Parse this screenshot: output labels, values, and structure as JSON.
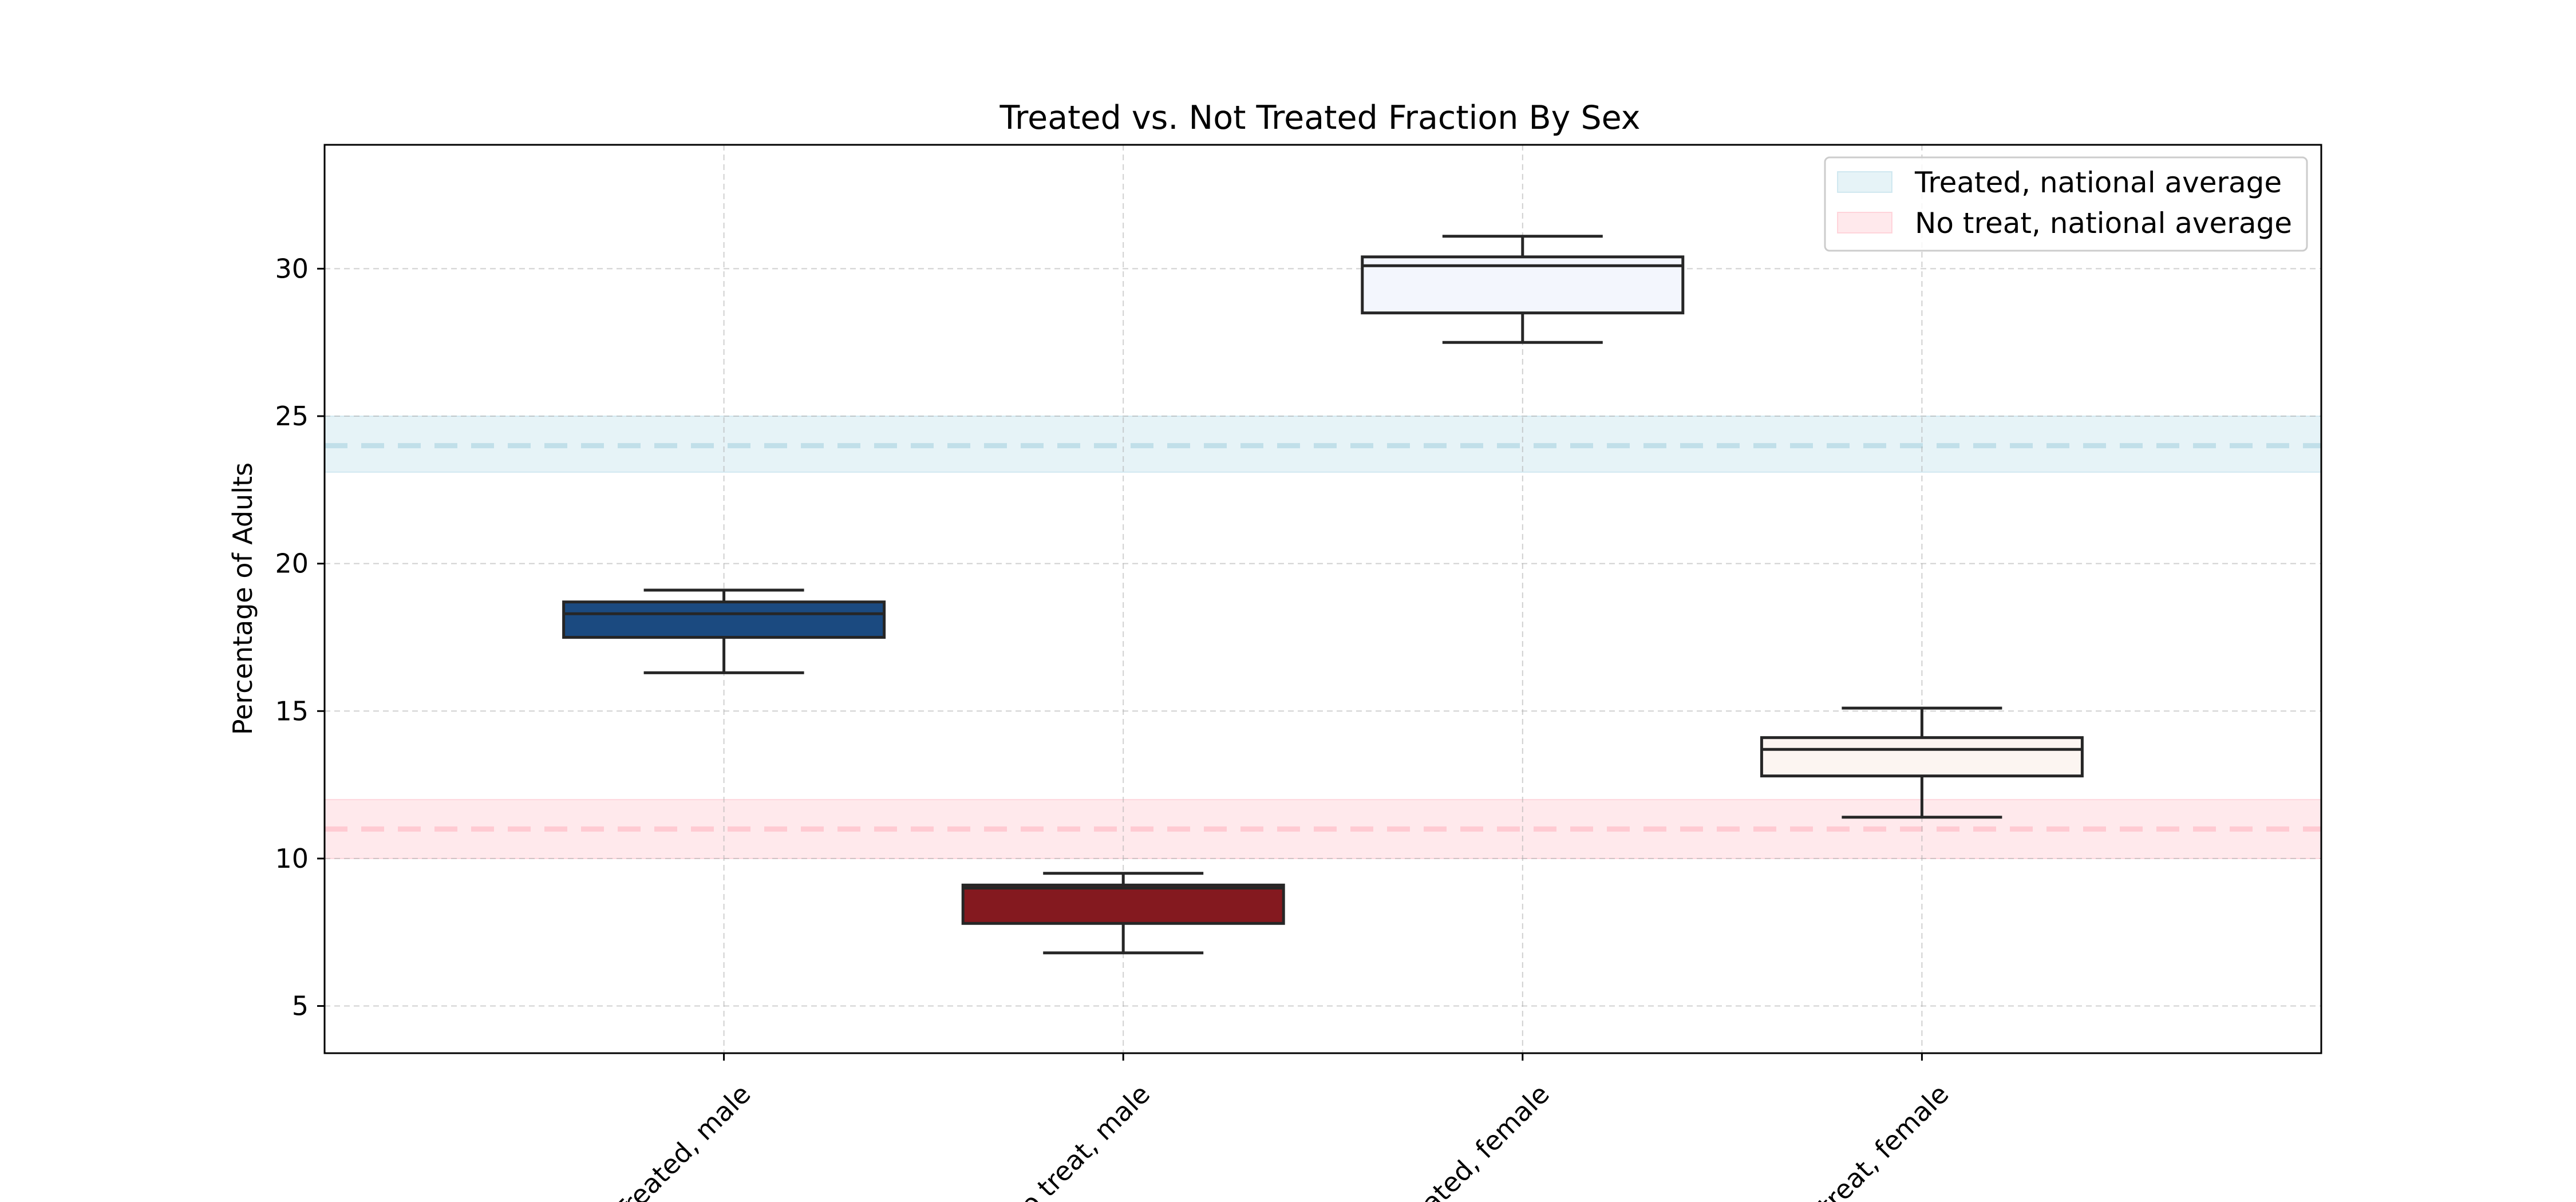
{
  "chart_data": {
    "type": "box",
    "title": "Treated vs. Not Treated Fraction By Sex",
    "xlabel": "",
    "ylabel": "Percentage of Adults",
    "ylim": [
      3.4,
      34.2
    ],
    "yticks": [
      5,
      10,
      15,
      20,
      25,
      30
    ],
    "grid": true,
    "legend_position": "top-right",
    "categories": [
      "Treated, male",
      "No treat, male",
      "Treated, female",
      "No treat, female"
    ],
    "boxes": [
      {
        "category": "Treated, male",
        "whisker_low": 16.3,
        "q1": 17.5,
        "median": 18.3,
        "q3": 18.7,
        "whisker_high": 19.1,
        "color": "#1b4a80"
      },
      {
        "category": "No treat, male",
        "whisker_low": 6.8,
        "q1": 7.8,
        "median": 9.0,
        "q3": 9.1,
        "whisker_high": 9.5,
        "color": "#84191f"
      },
      {
        "category": "Treated, female",
        "whisker_low": 27.5,
        "q1": 28.5,
        "median": 30.1,
        "q3": 30.4,
        "whisker_high": 31.1,
        "color": "#f3f6fd"
      },
      {
        "category": "No treat, female",
        "whisker_low": 11.4,
        "q1": 12.8,
        "median": 13.7,
        "q3": 14.1,
        "whisker_high": 15.1,
        "color": "#fcf5f1"
      }
    ],
    "reference_bands": [
      {
        "name": "Treated, national average",
        "center": 24.0,
        "low": 23.1,
        "high": 25.0,
        "fill": "#add8e6",
        "line": "#a8d2e0"
      },
      {
        "name": "No treat, national average",
        "center": 11.0,
        "low": 10.0,
        "high": 12.0,
        "fill": "#ffb6c1",
        "line": "#ffb6c1"
      }
    ]
  }
}
